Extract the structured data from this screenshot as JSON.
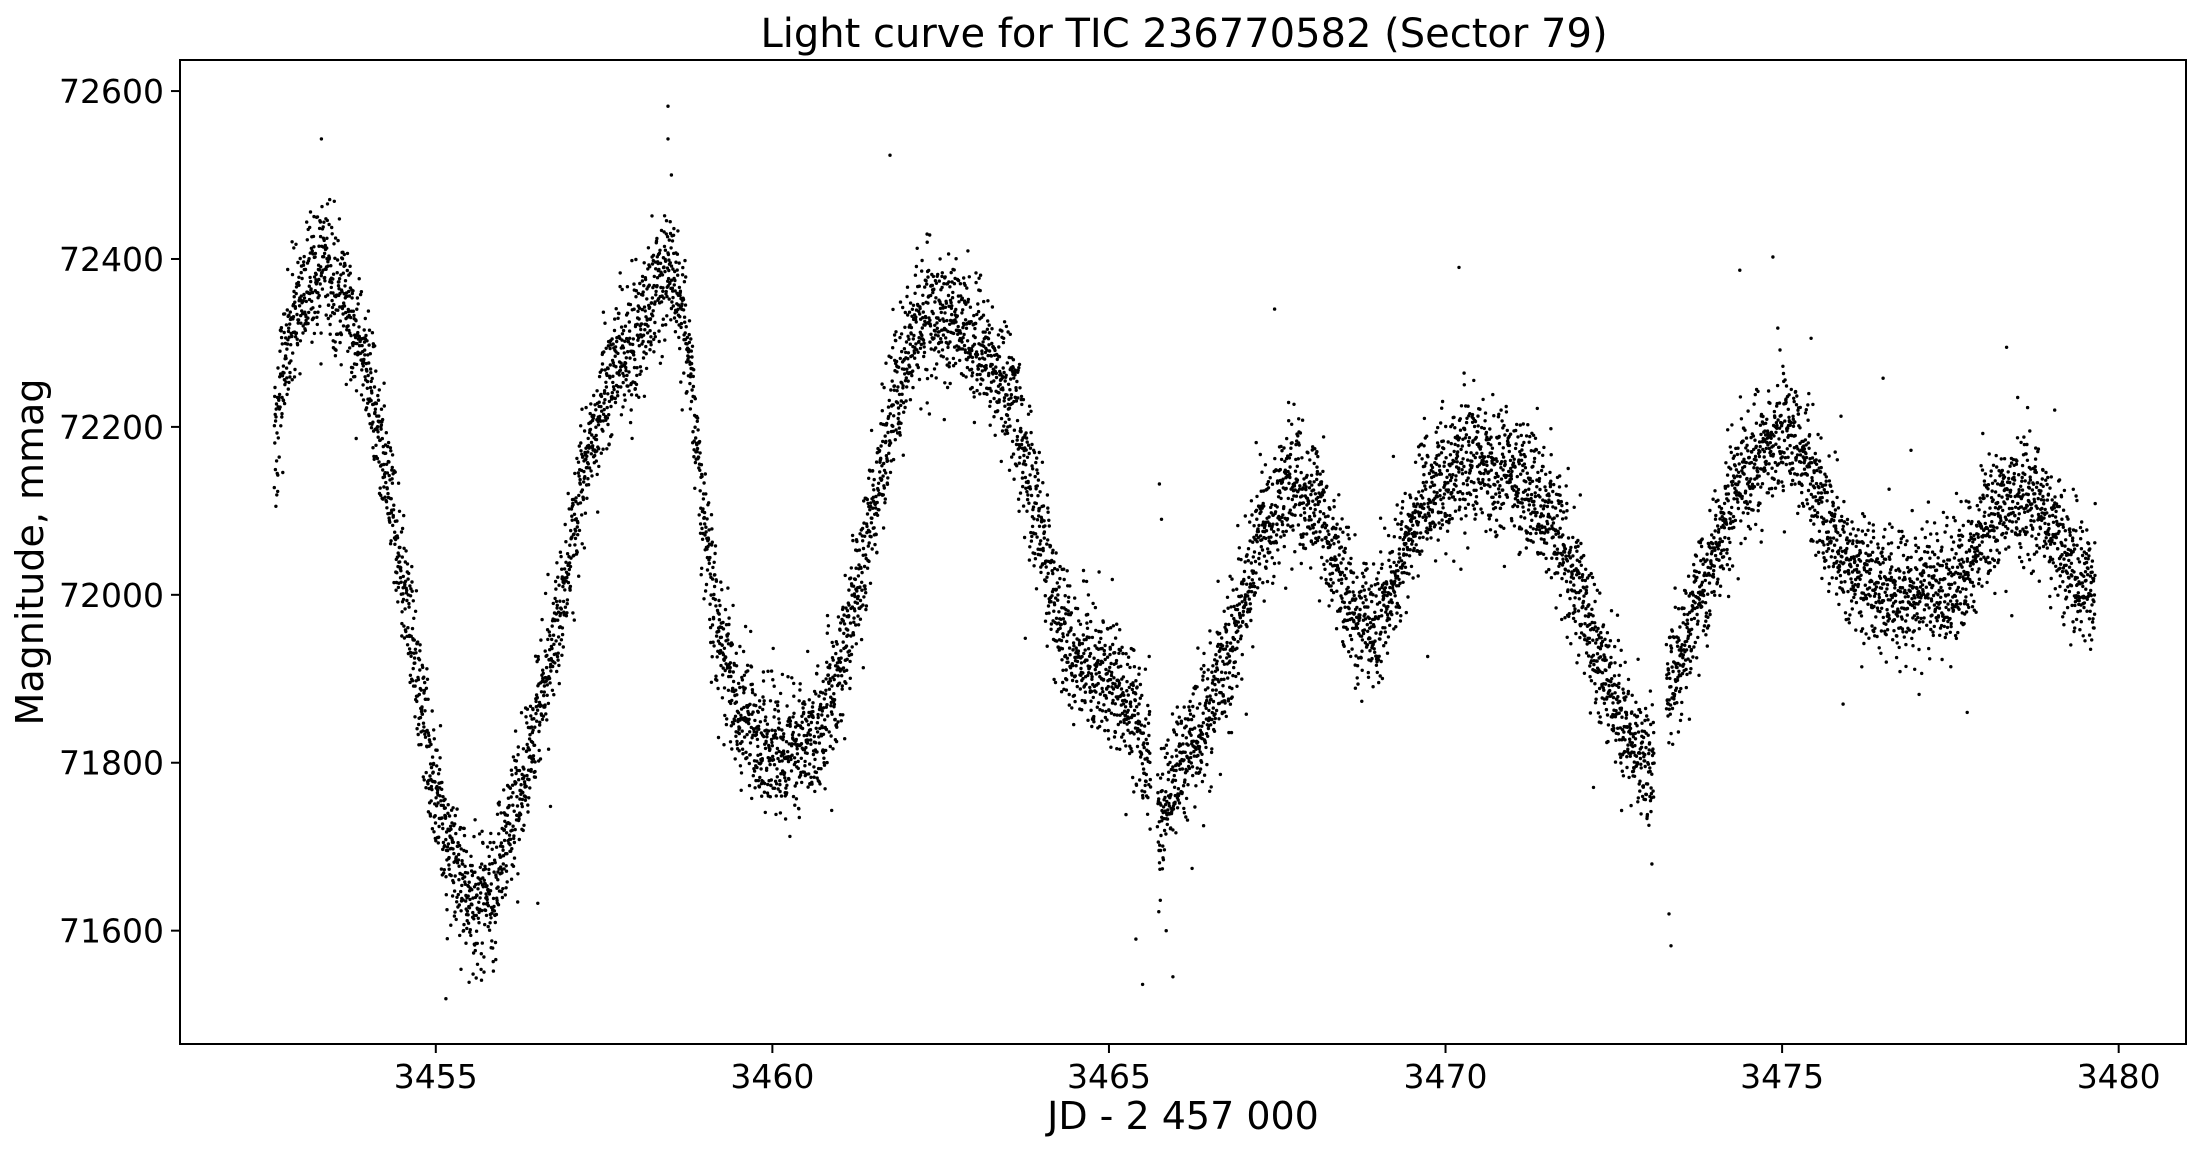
{
  "chart_data": {
    "type": "scatter",
    "title": "Light curve for TIC 236770582 (Sector 79)",
    "xlabel": "JD - 2 457 000",
    "ylabel": "Magnitude, mmag",
    "xlim": [
      3451.2,
      3481.0
    ],
    "ylim": [
      71465,
      72637
    ],
    "xticks": [
      3455,
      3460,
      3465,
      3470,
      3475,
      3480
    ],
    "yticks": [
      71600,
      71800,
      72000,
      72200,
      72400,
      72600
    ],
    "grid": false,
    "legend": "none",
    "point_color": "#000000",
    "series": [
      {
        "trend_x": [
          3452.6,
          3452.8,
          3453.0,
          3453.3,
          3453.6,
          3453.9,
          3454.1,
          3454.3,
          3454.6,
          3454.9,
          3455.2,
          3455.5,
          3455.8,
          3456.0,
          3456.3,
          3456.6,
          3456.9,
          3457.1,
          3457.3,
          3457.5,
          3457.7,
          3457.9,
          3458.1,
          3458.3,
          3458.45,
          3458.6,
          3458.8,
          3459.0,
          3459.2,
          3459.5,
          3459.8,
          3460.1,
          3460.5,
          3460.9,
          3461.2,
          3461.5,
          3461.8,
          3462.1,
          3462.4,
          3462.7,
          3463.0,
          3463.3,
          3463.6,
          3463.9,
          3464.2,
          3464.5,
          3464.8,
          3465.1,
          3465.4,
          3465.6,
          3465.75,
          3466.0,
          3466.3,
          3466.6,
          3466.9,
          3467.2,
          3467.5,
          3467.8,
          3468.1,
          3468.4,
          3468.7,
          3469.0,
          3469.3,
          3469.6,
          3469.9,
          3470.2,
          3470.5,
          3470.8,
          3471.1,
          3471.4,
          3471.7,
          3472.0,
          3472.3,
          3472.6,
          3472.9,
          3473.05,
          3473.3,
          3473.5,
          3473.8,
          3474.1,
          3474.4,
          3474.7,
          3475.0,
          3475.3,
          3475.6,
          3475.9,
          3476.2,
          3476.5,
          3476.8,
          3477.1,
          3477.4,
          3477.7,
          3478.0,
          3478.3,
          3478.6,
          3478.9,
          3479.2,
          3479.4,
          3479.65
        ],
        "trend_y": [
          72180,
          72300,
          72360,
          72380,
          72360,
          72300,
          72220,
          72120,
          71980,
          71810,
          71690,
          71630,
          71640,
          71690,
          71780,
          71880,
          72000,
          72100,
          72180,
          72240,
          72280,
          72300,
          72330,
          72360,
          72390,
          72370,
          72250,
          72080,
          71950,
          71870,
          71830,
          71810,
          71820,
          71880,
          71980,
          72100,
          72220,
          72310,
          72340,
          72330,
          72310,
          72270,
          72210,
          72110,
          71990,
          71920,
          71910,
          71890,
          71850,
          71800,
          71720,
          71790,
          71830,
          71880,
          71960,
          72050,
          72110,
          72130,
          72100,
          72030,
          71970,
          71960,
          72030,
          72100,
          72130,
          72150,
          72160,
          72150,
          72140,
          72110,
          72070,
          72000,
          71920,
          71850,
          71810,
          71780,
          71880,
          71930,
          72000,
          72080,
          72140,
          72170,
          72190,
          72170,
          72100,
          72050,
          72020,
          72010,
          72000,
          72000,
          72000,
          72020,
          72080,
          72110,
          72120,
          72090,
          72050,
          72020,
          72000
        ],
        "scatter_sd": 38,
        "n_points": 9200,
        "outliers": [
          [
            3453.3,
            72543
          ],
          [
            3458.45,
            72582
          ],
          [
            3458.45,
            72543
          ],
          [
            3458.5,
            72500
          ],
          [
            3455.15,
            71519
          ],
          [
            3465.5,
            71536
          ],
          [
            3465.95,
            71545
          ],
          [
            3465.75,
            72132
          ],
          [
            3465.78,
            72090
          ],
          [
            3470.2,
            72390
          ],
          [
            3473.35,
            71582
          ],
          [
            3473.32,
            71620
          ],
          [
            3476.5,
            72258
          ],
          [
            3478.5,
            72235
          ],
          [
            3479.05,
            72220
          ],
          [
            3477.75,
            71860
          ],
          [
            3459.2,
            71830
          ],
          [
            3462.3,
            72420
          ],
          [
            3465.4,
            71590
          ],
          [
            3465.85,
            71600
          ]
        ]
      }
    ]
  }
}
